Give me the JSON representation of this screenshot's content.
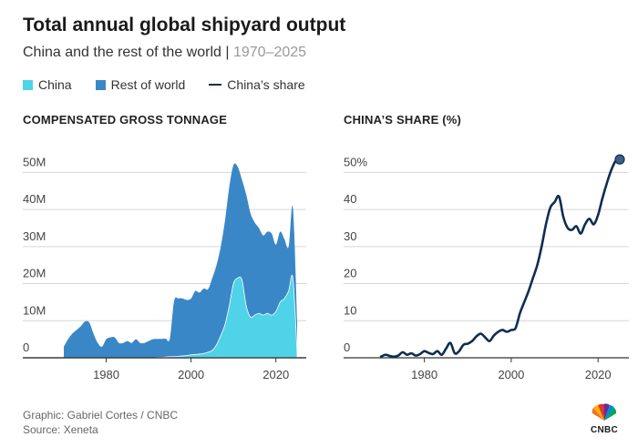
{
  "header": {
    "title": "Total annual global shipyard output",
    "subtitle_main": "China and the rest of the world",
    "subtitle_sep": " | ",
    "subtitle_years": "1970–2025"
  },
  "legend": {
    "china": "China",
    "rest": "Rest of world",
    "share": "China’s share"
  },
  "colors": {
    "china": "#4fd3e8",
    "rest": "#3a87c8",
    "share": "#0f2d52",
    "grid": "#d6d6d6",
    "axis": "#333333"
  },
  "footer": {
    "graphic": "Graphic: Gabriel Cortes / CNBC",
    "source": "Source: Xeneta"
  },
  "logo": {
    "text": "CNBC",
    "icon": "peacock-icon"
  },
  "chart_data": [
    {
      "type": "area",
      "title": "COMPENSATED GROSS TONNAGE",
      "stacked": true,
      "x": [
        1970,
        1971,
        1972,
        1973,
        1974,
        1975,
        1976,
        1977,
        1978,
        1979,
        1980,
        1981,
        1982,
        1983,
        1984,
        1985,
        1986,
        1987,
        1988,
        1989,
        1990,
        1991,
        1992,
        1993,
        1994,
        1995,
        1996,
        1997,
        1998,
        1999,
        2000,
        2001,
        2002,
        2003,
        2004,
        2005,
        2006,
        2007,
        2008,
        2009,
        2010,
        2011,
        2012,
        2013,
        2014,
        2015,
        2016,
        2017,
        2018,
        2019,
        2020,
        2021,
        2022,
        2023,
        2024,
        2025
      ],
      "series": [
        {
          "name": "China",
          "values": [
            0,
            0,
            0,
            0,
            0,
            0,
            0,
            0,
            0,
            0,
            0,
            0,
            0,
            0,
            0,
            0,
            0,
            0,
            0,
            0,
            0,
            0,
            0.1,
            0.1,
            0.2,
            0.3,
            0.3,
            0.4,
            0.5,
            0.6,
            0.8,
            0.9,
            1.0,
            1.2,
            1.5,
            2.0,
            3.5,
            6.0,
            9.0,
            14.0,
            20.0,
            21.5,
            21.0,
            14.0,
            11.0,
            11.5,
            12.0,
            11.5,
            12.0,
            11.5,
            12.5,
            15.0,
            16.0,
            18.0,
            21.5,
            1.5
          ]
        },
        {
          "name": "Rest of world",
          "values": [
            3.0,
            5.0,
            6.5,
            7.5,
            8.5,
            9.8,
            9.5,
            6.5,
            4.0,
            3.0,
            5.0,
            5.5,
            5.5,
            4.0,
            4.0,
            4.5,
            4.0,
            5.0,
            4.0,
            4.0,
            4.5,
            5.0,
            5.0,
            5.0,
            5.0,
            4.9,
            15.0,
            15.6,
            15.5,
            15.0,
            15.2,
            17.1,
            16.6,
            17.5,
            17.0,
            19.5,
            21.5,
            24.0,
            28.0,
            32.0,
            32.0,
            30.0,
            27.0,
            30.0,
            28.0,
            25.0,
            23.0,
            21.5,
            22.0,
            22.0,
            18.0,
            19.0,
            16.0,
            12.0,
            19.0,
            8.5
          ]
        }
      ],
      "ylim": [
        0,
        55
      ],
      "yticks": [
        0,
        10,
        20,
        30,
        40,
        50
      ],
      "ytick_labels": [
        "0",
        "10M",
        "20M",
        "30M",
        "40M",
        "50M"
      ],
      "xticks": [
        1980,
        2000,
        2020
      ],
      "xtick_labels": [
        "1980",
        "2000",
        "2020"
      ],
      "grid": true
    },
    {
      "type": "line",
      "title": "CHINA’S SHARE (%)",
      "x": [
        1970,
        1971,
        1972,
        1973,
        1974,
        1975,
        1976,
        1977,
        1978,
        1979,
        1980,
        1981,
        1982,
        1983,
        1984,
        1985,
        1986,
        1987,
        1988,
        1989,
        1990,
        1991,
        1992,
        1993,
        1994,
        1995,
        1996,
        1997,
        1998,
        1999,
        2000,
        2001,
        2002,
        2003,
        2004,
        2005,
        2006,
        2007,
        2008,
        2009,
        2010,
        2011,
        2012,
        2013,
        2014,
        2015,
        2016,
        2017,
        2018,
        2019,
        2020,
        2021,
        2022,
        2023,
        2024,
        2025
      ],
      "series": [
        {
          "name": "China’s share",
          "values": [
            0.3,
            0.8,
            0.5,
            0.3,
            0.6,
            1.5,
            0.8,
            1.2,
            0.6,
            1.0,
            1.8,
            1.3,
            1.0,
            1.8,
            0.8,
            2.5,
            4.0,
            1.2,
            1.8,
            3.5,
            3.8,
            4.5,
            5.8,
            6.5,
            5.5,
            4.5,
            6.0,
            7.0,
            7.5,
            7.0,
            7.5,
            8.0,
            12.0,
            15.0,
            18.0,
            21.5,
            25.0,
            30.0,
            36.0,
            40.5,
            42.0,
            43.5,
            38.0,
            35.0,
            34.5,
            35.5,
            33.5,
            36.0,
            37.5,
            36.0,
            38.5,
            43.0,
            47.0,
            50.5,
            53.0,
            53.5
          ]
        }
      ],
      "ylim": [
        0,
        55
      ],
      "yticks": [
        0,
        10,
        20,
        30,
        40,
        50
      ],
      "ytick_labels": [
        "0",
        "10",
        "20",
        "30",
        "40",
        "50%"
      ],
      "xticks": [
        1980,
        2000,
        2020
      ],
      "xtick_labels": [
        "1980",
        "2000",
        "2020"
      ],
      "grid": true,
      "end_marker": true
    }
  ]
}
